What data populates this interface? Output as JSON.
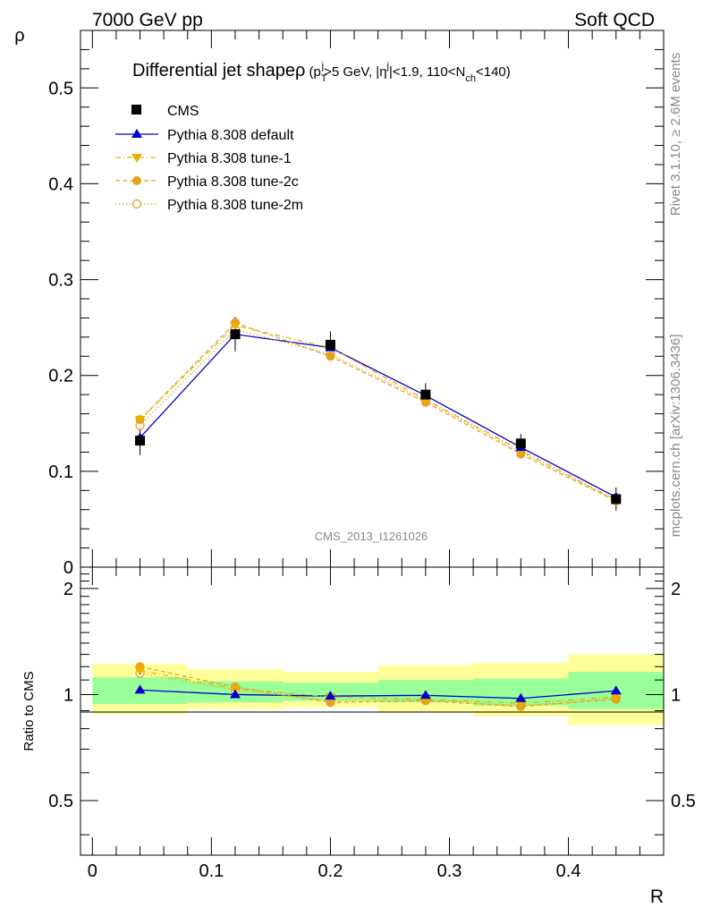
{
  "header": {
    "left": "7000 GeV pp",
    "right": "Soft QCD"
  },
  "side_labels": {
    "rivet": "Rivet 3.1.10, ≥ 2.6M events",
    "mcplots": "mcplots.cern.ch [arXiv:1306.3436]"
  },
  "watermark": "CMS_2013_I1261026",
  "chart_data": [
    {
      "type": "line",
      "title": "Differential jet shape ρ (p_T^j > 5 GeV, |η^j| < 1.9, 110 < N_ch < 140)",
      "title_parts": {
        "main": "Differential jet shape",
        "rho": "ρ",
        "open": " (p",
        "sub_T": "T",
        "sup_j1": "j",
        "mid1": ">5 GeV, |η",
        "sup_j2": "j",
        "mid2": "|<1.9, 110<N",
        "sub_ch": "ch",
        "end": "<140)"
      },
      "ylabel": "ρ",
      "xlim": [
        -0.01,
        0.48
      ],
      "ylim": [
        0,
        0.56
      ],
      "yticks": [
        0,
        0.1,
        0.2,
        0.3,
        0.4,
        0.5
      ],
      "ytick_labels": [
        "0",
        "0.1",
        "0.2",
        "0.3",
        "0.4",
        "0.5"
      ],
      "legend_placement": "top-left",
      "x": [
        0.04,
        0.12,
        0.2,
        0.28,
        0.36,
        0.44
      ],
      "series": [
        {
          "name": "CMS",
          "color": "#000000",
          "marker": "square",
          "values": [
            0.132,
            0.243,
            0.232,
            0.18,
            0.129,
            0.071
          ],
          "errors": [
            0.015,
            0.018,
            0.014,
            0.012,
            0.01,
            0.012
          ]
        },
        {
          "name": "Pythia 8.308 default",
          "color": "#0000cc",
          "marker": "triangle-up",
          "line": "solid",
          "values": [
            0.135,
            0.243,
            0.229,
            0.179,
            0.125,
            0.073
          ]
        },
        {
          "name": "Pythia 8.308 tune-1",
          "color": "#e8b000",
          "marker": "triangle-down",
          "line": "dashdot",
          "values": [
            0.154,
            0.252,
            0.229,
            0.175,
            0.122,
            0.07
          ]
        },
        {
          "name": "Pythia 8.308 tune-2c",
          "color": "#e8a020",
          "marker": "circle",
          "line": "dashed",
          "values": [
            0.154,
            0.255,
            0.22,
            0.172,
            0.118,
            0.069
          ]
        },
        {
          "name": "Pythia 8.308 tune-2m",
          "color": "#e8a020",
          "marker": "open-circle",
          "line": "dotted",
          "values": [
            0.148,
            0.248,
            0.222,
            0.174,
            0.12,
            0.07
          ]
        }
      ]
    },
    {
      "type": "line",
      "xlabel": "R",
      "ylabel": "Ratio to CMS",
      "xlim": [
        -0.01,
        0.48
      ],
      "ylim": [
        0.35,
        2.3
      ],
      "xticks": [
        0,
        0.1,
        0.2,
        0.3,
        0.4
      ],
      "xtick_labels": [
        "0",
        "0.1",
        "0.2",
        "0.3",
        "0.4"
      ],
      "yticks": [
        0.5,
        1,
        2
      ],
      "ytick_labels": [
        "0.5",
        "1",
        "2"
      ],
      "bins": [
        [
          0.0,
          0.08
        ],
        [
          0.08,
          0.16
        ],
        [
          0.16,
          0.24
        ],
        [
          0.24,
          0.32
        ],
        [
          0.32,
          0.4
        ],
        [
          0.4,
          0.48
        ]
      ],
      "band_green": [
        [
          0.94,
          1.12
        ],
        [
          0.95,
          1.09
        ],
        [
          0.96,
          1.08
        ],
        [
          0.95,
          1.1
        ],
        [
          0.93,
          1.11
        ],
        [
          0.91,
          1.16
        ]
      ],
      "band_yellow": [
        [
          0.88,
          1.22
        ],
        [
          0.91,
          1.18
        ],
        [
          0.92,
          1.16
        ],
        [
          0.89,
          1.21
        ],
        [
          0.87,
          1.23
        ],
        [
          0.82,
          1.3
        ]
      ],
      "x": [
        0.04,
        0.12,
        0.2,
        0.28,
        0.36,
        0.44
      ],
      "series": [
        {
          "name": "Pythia 8.308 default",
          "color": "#0000cc",
          "marker": "triangle-up",
          "line": "solid",
          "values": [
            1.03,
            1.0,
            0.99,
            0.995,
            0.975,
            1.025
          ]
        },
        {
          "name": "Pythia 8.308 tune-1",
          "color": "#e8b000",
          "marker": "triangle-down",
          "line": "dashdot",
          "values": [
            1.17,
            1.04,
            0.985,
            0.97,
            0.945,
            0.985
          ]
        },
        {
          "name": "Pythia 8.308 tune-2c",
          "color": "#e8a020",
          "marker": "circle",
          "line": "dashed",
          "values": [
            1.2,
            1.05,
            0.95,
            0.96,
            0.925,
            0.97
          ]
        },
        {
          "name": "Pythia 8.308 tune-2m",
          "color": "#e8a020",
          "marker": "open-circle",
          "line": "dotted",
          "values": [
            1.15,
            1.03,
            0.96,
            0.965,
            0.93,
            0.975
          ]
        }
      ]
    }
  ]
}
